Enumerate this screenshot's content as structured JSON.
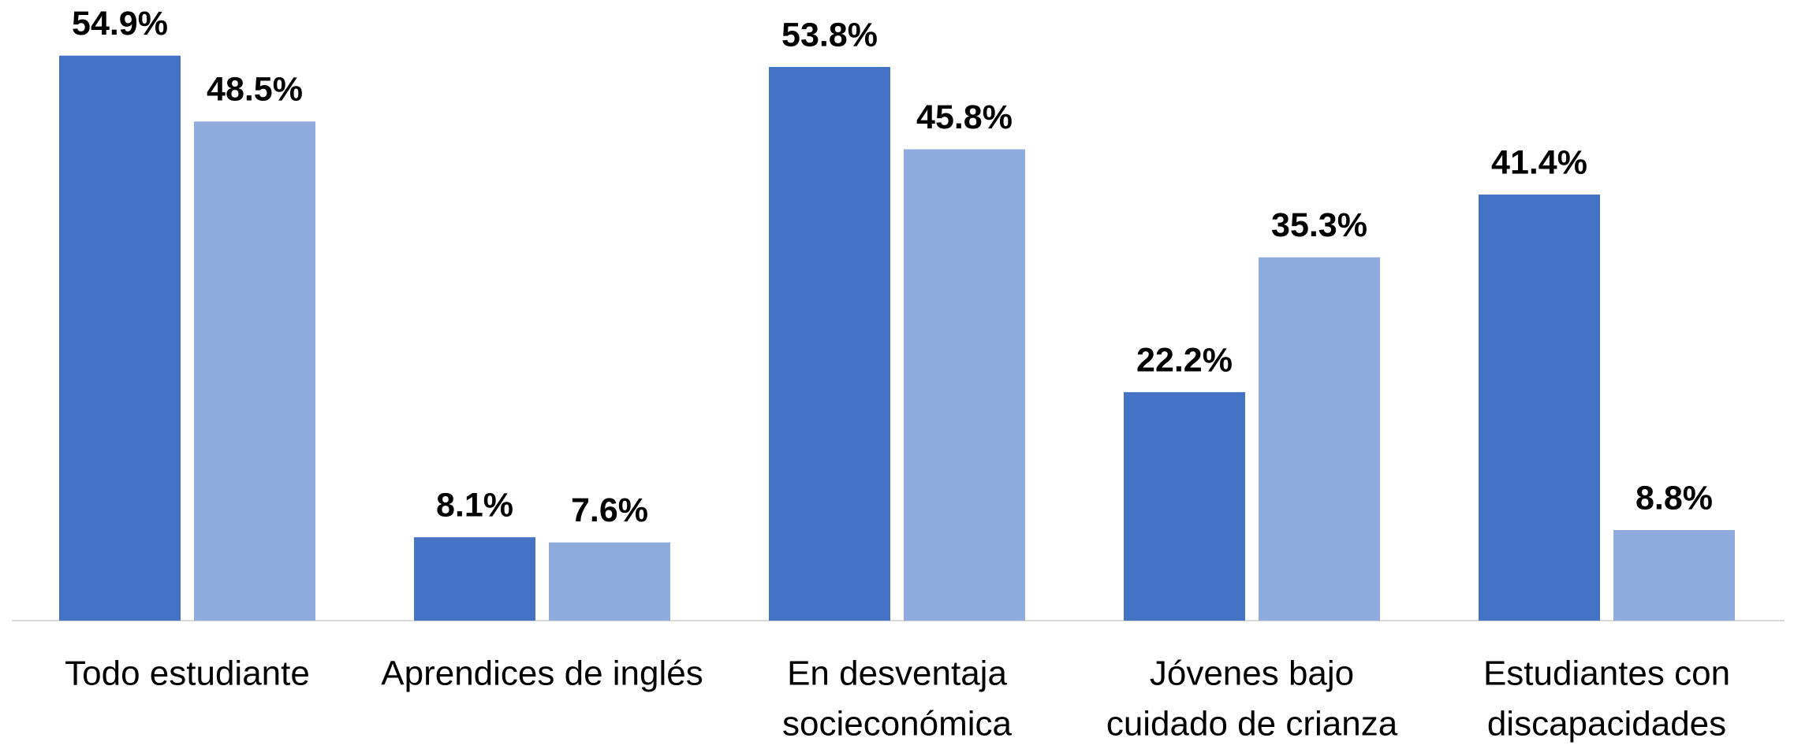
{
  "chart_data": {
    "type": "bar",
    "categories": [
      [
        "Todo estudiante"
      ],
      [
        "Aprendices de inglés"
      ],
      [
        "En desventaja",
        "socieconómica"
      ],
      [
        "Jóvenes bajo",
        "cuidado de crianza"
      ],
      [
        "Estudiantes con",
        "discapacidades"
      ]
    ],
    "series": [
      {
        "color": "#4472c4",
        "values": [
          54.9,
          8.1,
          53.8,
          22.2,
          41.4
        ],
        "value_labels": [
          "54.9%",
          "8.1%",
          "53.8%",
          "22.2%",
          "41.4%"
        ]
      },
      {
        "color": "#8faadc",
        "values": [
          48.5,
          7.6,
          45.8,
          35.3,
          8.8
        ],
        "value_labels": [
          "48.5%",
          "7.6%",
          "45.8%",
          "35.3%",
          "8.8%"
        ]
      }
    ],
    "ylim": [
      0,
      60
    ]
  }
}
